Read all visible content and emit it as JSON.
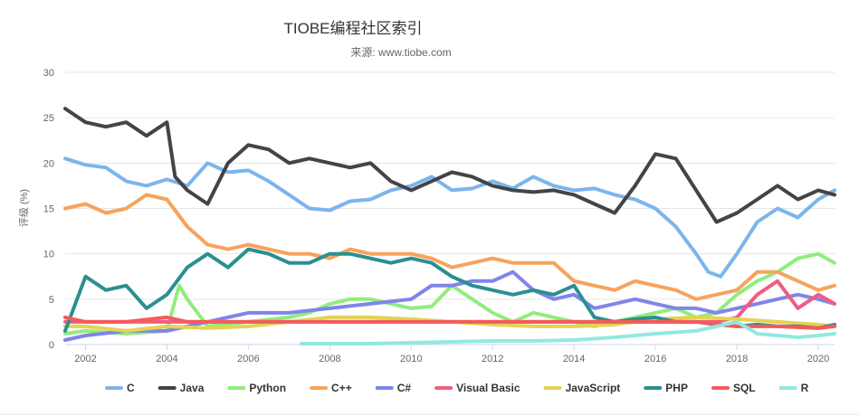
{
  "chart_data": {
    "type": "line",
    "title": "TIOBE编程社区索引",
    "subtitle": "来源: www.tiobe.com",
    "ylabel": "评级 (%)",
    "xlabel": "",
    "ylim": [
      0,
      30
    ],
    "xlim": [
      2001.5,
      2020.4
    ],
    "yticks": [
      0,
      5,
      10,
      15,
      20,
      25,
      30
    ],
    "xticks": [
      2002,
      2004,
      2006,
      2008,
      2010,
      2012,
      2014,
      2016,
      2018,
      2020
    ],
    "legend_position": "bottom",
    "series": [
      {
        "name": "C",
        "color": "#7cb5ec",
        "x": [
          2001.5,
          2002,
          2002.5,
          2003,
          2003.5,
          2004,
          2004.5,
          2005,
          2005.5,
          2006,
          2006.5,
          2007,
          2007.5,
          2008,
          2008.5,
          2009,
          2009.5,
          2010,
          2010.5,
          2011,
          2011.5,
          2012,
          2012.5,
          2013,
          2013.5,
          2014,
          2014.5,
          2015,
          2015.5,
          2016,
          2016.5,
          2017,
          2017.3,
          2017.6,
          2018,
          2018.5,
          2019,
          2019.5,
          2020,
          2020.4
        ],
        "y": [
          20.5,
          19.8,
          19.5,
          18.0,
          17.5,
          18.2,
          17.5,
          20.0,
          19.0,
          19.2,
          18.0,
          16.5,
          15.0,
          14.8,
          15.8,
          16.0,
          17.0,
          17.5,
          18.5,
          17.0,
          17.2,
          18.0,
          17.2,
          18.5,
          17.5,
          17.0,
          17.2,
          16.5,
          16.0,
          15.0,
          13.0,
          10.0,
          8.0,
          7.5,
          10.0,
          13.5,
          15.0,
          14.0,
          16.0,
          17.0
        ]
      },
      {
        "name": "Java",
        "color": "#434348",
        "x": [
          2001.5,
          2002,
          2002.5,
          2003,
          2003.5,
          2004,
          2004.2,
          2004.5,
          2005,
          2005.5,
          2006,
          2006.5,
          2007,
          2007.5,
          2008,
          2008.5,
          2009,
          2009.5,
          2010,
          2010.5,
          2011,
          2011.5,
          2012,
          2012.5,
          2013,
          2013.5,
          2014,
          2014.5,
          2015,
          2015.5,
          2016,
          2016.5,
          2017,
          2017.5,
          2018,
          2018.5,
          2019,
          2019.5,
          2020,
          2020.4
        ],
        "y": [
          26.0,
          24.5,
          24.0,
          24.5,
          23.0,
          24.5,
          18.5,
          17.0,
          15.5,
          20.0,
          22.0,
          21.5,
          20.0,
          20.5,
          20.0,
          19.5,
          20.0,
          18.0,
          17.0,
          18.0,
          19.0,
          18.5,
          17.5,
          17.0,
          16.8,
          17.0,
          16.5,
          15.5,
          14.5,
          17.5,
          21.0,
          20.5,
          17.0,
          13.5,
          14.5,
          16.0,
          17.5,
          16.0,
          17.0,
          16.5
        ]
      },
      {
        "name": "Python",
        "color": "#90ed7d",
        "x": [
          2001.5,
          2002,
          2003,
          2004,
          2004.3,
          2004.5,
          2005,
          2006,
          2007,
          2007.5,
          2008,
          2008.5,
          2009,
          2009.5,
          2010,
          2010.5,
          2011,
          2011.5,
          2012,
          2012.5,
          2013,
          2013.5,
          2014,
          2014.5,
          2015,
          2015.5,
          2016,
          2016.5,
          2017,
          2017.5,
          2018,
          2018.5,
          2019,
          2019.5,
          2020,
          2020.4
        ],
        "y": [
          1.2,
          1.5,
          1.2,
          1.5,
          6.5,
          5.0,
          2.0,
          2.5,
          3.0,
          3.5,
          4.5,
          5.0,
          5.0,
          4.5,
          4.0,
          4.2,
          6.5,
          5.0,
          3.5,
          2.5,
          3.5,
          3.0,
          2.5,
          2.0,
          2.5,
          3.0,
          3.5,
          4.0,
          3.0,
          3.5,
          5.5,
          7.0,
          8.0,
          9.5,
          10.0,
          9.0
        ]
      },
      {
        "name": "C++",
        "color": "#f7a35c",
        "x": [
          2001.5,
          2002,
          2002.5,
          2003,
          2003.5,
          2004,
          2004.5,
          2005,
          2005.5,
          2006,
          2006.5,
          2007,
          2007.5,
          2008,
          2008.5,
          2009,
          2009.5,
          2010,
          2010.5,
          2011,
          2011.5,
          2012,
          2012.5,
          2013,
          2013.5,
          2014,
          2014.5,
          2015,
          2015.5,
          2016,
          2016.5,
          2017,
          2017.5,
          2018,
          2018.5,
          2019,
          2019.5,
          2020,
          2020.4
        ],
        "y": [
          15.0,
          15.5,
          14.5,
          15.0,
          16.5,
          16.0,
          13.0,
          11.0,
          10.5,
          11.0,
          10.5,
          10.0,
          10.0,
          9.5,
          10.5,
          10.0,
          10.0,
          10.0,
          9.5,
          8.5,
          9.0,
          9.5,
          9.0,
          9.0,
          9.0,
          7.0,
          6.5,
          6.0,
          7.0,
          6.5,
          6.0,
          5.0,
          5.5,
          6.0,
          8.0,
          8.0,
          7.0,
          6.0,
          6.5
        ]
      },
      {
        "name": "C#",
        "color": "#8085e9",
        "x": [
          2001.5,
          2002,
          2003,
          2004,
          2005,
          2006,
          2007,
          2008,
          2009,
          2010,
          2010.5,
          2011,
          2011.5,
          2012,
          2012.5,
          2013,
          2013.5,
          2014,
          2014.5,
          2015,
          2015.5,
          2016,
          2016.5,
          2017,
          2017.5,
          2018,
          2018.5,
          2019,
          2019.5,
          2020,
          2020.4
        ],
        "y": [
          0.5,
          1.0,
          1.5,
          1.5,
          2.5,
          3.5,
          3.5,
          4.0,
          4.5,
          5.0,
          6.5,
          6.5,
          7.0,
          7.0,
          8.0,
          6.0,
          5.0,
          5.5,
          4.0,
          4.5,
          5.0,
          4.5,
          4.0,
          4.0,
          3.5,
          4.0,
          4.5,
          5.0,
          5.5,
          5.0,
          4.5
        ]
      },
      {
        "name": "Visual Basic",
        "color": "#f15c80",
        "x": [
          2001.5,
          2002,
          2003,
          2004,
          2005,
          2006,
          2007,
          2008,
          2009,
          2010,
          2011,
          2012,
          2013,
          2014,
          2015,
          2016,
          2017,
          2017.5,
          2018,
          2018.5,
          2019,
          2019.5,
          2020,
          2020.4
        ],
        "y": [
          2.5,
          2.5,
          2.5,
          2.5,
          2.5,
          2.5,
          2.5,
          2.5,
          2.5,
          2.5,
          2.5,
          2.5,
          2.5,
          2.5,
          2.5,
          2.5,
          2.5,
          2.5,
          3.0,
          5.5,
          7.0,
          4.0,
          5.5,
          4.5
        ]
      },
      {
        "name": "JavaScript",
        "color": "#e4d354",
        "x": [
          2001.5,
          2002,
          2003,
          2004,
          2005,
          2006,
          2007,
          2008,
          2009,
          2010,
          2011,
          2012,
          2013,
          2014,
          2015,
          2016,
          2017,
          2018,
          2019,
          2020,
          2020.4
        ],
        "y": [
          2.0,
          2.0,
          1.5,
          2.0,
          1.8,
          2.0,
          2.5,
          3.0,
          3.0,
          2.8,
          2.5,
          2.2,
          2.0,
          2.0,
          2.2,
          2.8,
          3.0,
          2.8,
          2.5,
          2.2,
          2.0
        ]
      },
      {
        "name": "PHP",
        "color": "#2b908f",
        "x": [
          2001.5,
          2002,
          2002.5,
          2003,
          2003.5,
          2004,
          2004.5,
          2005,
          2005.5,
          2006,
          2006.5,
          2007,
          2007.5,
          2008,
          2008.5,
          2009,
          2009.5,
          2010,
          2010.5,
          2011,
          2011.5,
          2012,
          2012.5,
          2013,
          2013.5,
          2014,
          2014.5,
          2015,
          2015.5,
          2016,
          2016.5,
          2017,
          2017.5,
          2018,
          2018.5,
          2019,
          2019.5,
          2020,
          2020.4
        ],
        "y": [
          1.5,
          7.5,
          6.0,
          6.5,
          4.0,
          5.5,
          8.5,
          10.0,
          8.5,
          10.5,
          10.0,
          9.0,
          9.0,
          10.0,
          10.0,
          9.5,
          9.0,
          9.5,
          9.0,
          7.5,
          6.5,
          6.0,
          5.5,
          6.0,
          5.5,
          6.5,
          3.0,
          2.5,
          2.8,
          3.0,
          2.5,
          2.5,
          2.2,
          2.0,
          2.2,
          2.0,
          2.0,
          1.8,
          2.2
        ]
      },
      {
        "name": "SQL",
        "color": "#f45b5b",
        "x": [
          2001.5,
          2002,
          2003,
          2004,
          2004.5,
          2005,
          2006,
          2007,
          2008,
          2009,
          2010,
          2011,
          2012,
          2013,
          2014,
          2015,
          2016,
          2017,
          2018,
          2019,
          2020,
          2020.4
        ],
        "y": [
          3.0,
          2.5,
          2.5,
          3.0,
          2.5,
          2.5,
          2.5,
          2.5,
          2.5,
          2.5,
          2.5,
          2.5,
          2.5,
          2.5,
          2.5,
          2.5,
          2.5,
          2.5,
          2.0,
          2.0,
          1.8,
          2.0
        ]
      },
      {
        "name": "R",
        "color": "#91e8e1",
        "x": [
          2007.3,
          2008,
          2009,
          2010,
          2011,
          2012,
          2013,
          2014,
          2015,
          2016,
          2017,
          2017.5,
          2018,
          2018.5,
          2019,
          2019.5,
          2020,
          2020.4
        ],
        "y": [
          0.1,
          0.1,
          0.1,
          0.2,
          0.3,
          0.4,
          0.4,
          0.5,
          0.8,
          1.2,
          1.5,
          2.0,
          2.5,
          1.2,
          1.0,
          0.8,
          1.0,
          1.2
        ]
      }
    ]
  }
}
